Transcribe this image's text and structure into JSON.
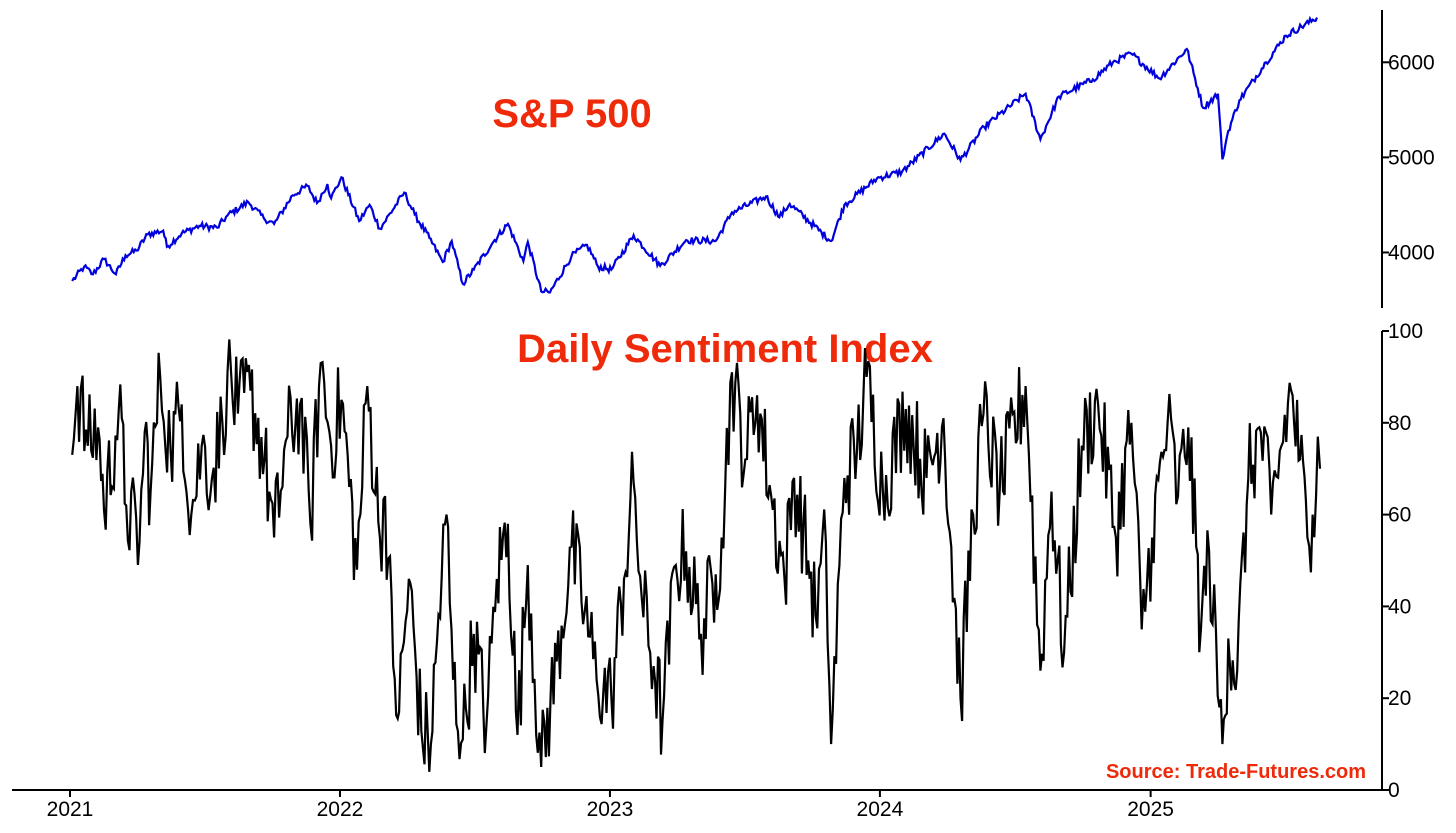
{
  "colors": {
    "title": "#ee2a0a",
    "source": "#ee2a0a",
    "sp500_line": "#0000dd",
    "dsi_line": "#000000",
    "axis": "#000000"
  },
  "chart_data": [
    {
      "type": "line",
      "title": "S&P 500",
      "x_axis": "shared dates with lower panel",
      "yaxis_side": "right",
      "ylim": [
        3500,
        6550
      ],
      "yticks": [
        4000,
        5000,
        6000
      ],
      "ytick_labels": [
        "4000",
        "5000",
        "6000"
      ],
      "grid": false,
      "series": [
        {
          "values": [
            [
              "2021-01-04",
              3700
            ],
            [
              "2021-01-20",
              3850
            ],
            [
              "2021-02-01",
              3770
            ],
            [
              "2021-02-16",
              3930
            ],
            [
              "2021-03-04",
              3770
            ],
            [
              "2021-03-17",
              3970
            ],
            [
              "2021-04-01",
              4020
            ],
            [
              "2021-04-16",
              4190
            ],
            [
              "2021-05-07",
              4230
            ],
            [
              "2021-05-12",
              4060
            ],
            [
              "2021-06-01",
              4200
            ],
            [
              "2021-06-25",
              4280
            ],
            [
              "2021-07-19",
              4260
            ],
            [
              "2021-08-02",
              4390
            ],
            [
              "2021-08-30",
              4530
            ],
            [
              "2021-09-20",
              4360
            ],
            [
              "2021-10-04",
              4300
            ],
            [
              "2021-10-29",
              4600
            ],
            [
              "2021-11-18",
              4700
            ],
            [
              "2021-12-01",
              4520
            ],
            [
              "2021-12-15",
              4720
            ],
            [
              "2021-12-20",
              4570
            ],
            [
              "2022-01-03",
              4790
            ],
            [
              "2022-01-27",
              4330
            ],
            [
              "2022-02-10",
              4500
            ],
            [
              "2022-02-24",
              4250
            ],
            [
              "2022-03-29",
              4630
            ],
            [
              "2022-04-12",
              4400
            ],
            [
              "2022-05-02",
              4150
            ],
            [
              "2022-05-20",
              3900
            ],
            [
              "2022-06-01",
              4120
            ],
            [
              "2022-06-16",
              3670
            ],
            [
              "2022-07-01",
              3820
            ],
            [
              "2022-07-29",
              4130
            ],
            [
              "2022-08-16",
              4300
            ],
            [
              "2022-09-06",
              3910
            ],
            [
              "2022-09-12",
              4110
            ],
            [
              "2022-09-30",
              3590
            ],
            [
              "2022-10-12",
              3580
            ],
            [
              "2022-11-10",
              3960
            ],
            [
              "2022-12-01",
              4080
            ],
            [
              "2022-12-16",
              3850
            ],
            [
              "2023-01-03",
              3820
            ],
            [
              "2023-02-02",
              4180
            ],
            [
              "2023-03-10",
              3860
            ],
            [
              "2023-04-14",
              4130
            ],
            [
              "2023-05-24",
              4120
            ],
            [
              "2023-06-15",
              4420
            ],
            [
              "2023-07-31",
              4590
            ],
            [
              "2023-08-18",
              4370
            ],
            [
              "2023-09-01",
              4510
            ],
            [
              "2023-10-27",
              4120
            ],
            [
              "2023-11-14",
              4500
            ],
            [
              "2023-12-28",
              4780
            ],
            [
              "2024-01-31",
              4850
            ],
            [
              "2024-03-28",
              5250
            ],
            [
              "2024-04-19",
              4970
            ],
            [
              "2024-05-21",
              5320
            ],
            [
              "2024-07-16",
              5670
            ],
            [
              "2024-08-05",
              5190
            ],
            [
              "2024-08-30",
              5640
            ],
            [
              "2024-10-15",
              5820
            ],
            [
              "2024-11-11",
              6000
            ],
            [
              "2024-12-06",
              6090
            ],
            [
              "2025-01-13",
              5830
            ],
            [
              "2025-02-19",
              6140
            ],
            [
              "2025-03-13",
              5520
            ],
            [
              "2025-04-02",
              5670
            ],
            [
              "2025-04-08",
              4980
            ],
            [
              "2025-04-16",
              5280
            ],
            [
              "2025-05-01",
              5600
            ],
            [
              "2025-06-06",
              6000
            ],
            [
              "2025-07-03",
              6280
            ],
            [
              "2025-08-14",
              6470
            ]
          ]
        }
      ]
    },
    {
      "type": "line",
      "title": "Daily Sentiment Index",
      "xlim": [
        "2021-01-01",
        "2025-09-01"
      ],
      "xticks": [
        "2021-01-01",
        "2022-01-01",
        "2023-01-01",
        "2024-01-01",
        "2025-01-01"
      ],
      "xtick_labels": [
        "2021",
        "2022",
        "2023",
        "2024",
        "2025"
      ],
      "yaxis_side": "right",
      "ylim": [
        0,
        100
      ],
      "yticks": [
        0,
        20,
        40,
        60,
        80,
        100
      ],
      "ytick_labels": [
        "0",
        "20",
        "40",
        "60",
        "80",
        "100"
      ],
      "grid": false,
      "source": "Source: Trade-Futures.com",
      "series": [
        {
          "values": [
            [
              "2021-01-04",
              73
            ],
            [
              "2021-01-11",
              88
            ],
            [
              "2021-01-25",
              75
            ],
            [
              "2021-02-08",
              79
            ],
            [
              "2021-02-16",
              61
            ],
            [
              "2021-03-08",
              83
            ],
            [
              "2021-03-18",
              62
            ],
            [
              "2021-04-05",
              54
            ],
            [
              "2021-04-12",
              78
            ],
            [
              "2021-04-20",
              65
            ],
            [
              "2021-05-03",
              90
            ],
            [
              "2021-05-17",
              74
            ],
            [
              "2021-06-01",
              84
            ],
            [
              "2021-06-14",
              60
            ],
            [
              "2021-06-28",
              75
            ],
            [
              "2021-07-12",
              68
            ],
            [
              "2021-07-26",
              80
            ],
            [
              "2021-08-02",
              91
            ],
            [
              "2021-08-16",
              82
            ],
            [
              "2021-09-02",
              87
            ],
            [
              "2021-09-21",
              72
            ],
            [
              "2021-10-04",
              55
            ],
            [
              "2021-10-22",
              77
            ],
            [
              "2021-11-08",
              84
            ],
            [
              "2021-11-22",
              58
            ],
            [
              "2021-12-06",
              93
            ],
            [
              "2021-12-20",
              75
            ],
            [
              "2022-01-03",
              85
            ],
            [
              "2022-01-24",
              48
            ],
            [
              "2022-02-07",
              88
            ],
            [
              "2022-02-24",
              55
            ],
            [
              "2022-03-03",
              64
            ],
            [
              "2022-03-14",
              27
            ],
            [
              "2022-03-22",
              17
            ],
            [
              "2022-04-04",
              46
            ],
            [
              "2022-04-21",
              13
            ],
            [
              "2022-05-04",
              10
            ],
            [
              "2022-05-12",
              32
            ],
            [
              "2022-05-25",
              60
            ],
            [
              "2022-06-03",
              24
            ],
            [
              "2022-06-16",
              11
            ],
            [
              "2022-07-01",
              34
            ],
            [
              "2022-07-18",
              14
            ],
            [
              "2022-08-01",
              46
            ],
            [
              "2022-08-16",
              58
            ],
            [
              "2022-08-29",
              12
            ],
            [
              "2022-09-12",
              49
            ],
            [
              "2022-09-30",
              5
            ],
            [
              "2022-10-21",
              28
            ],
            [
              "2022-11-10",
              53
            ],
            [
              "2022-11-28",
              39
            ],
            [
              "2022-12-14",
              24
            ],
            [
              "2023-01-03",
              20
            ],
            [
              "2023-01-20",
              46
            ],
            [
              "2023-02-02",
              67
            ],
            [
              "2023-02-13",
              42
            ],
            [
              "2023-03-01",
              27
            ],
            [
              "2023-03-13",
              15
            ],
            [
              "2023-03-31",
              49
            ],
            [
              "2023-04-14",
              52
            ],
            [
              "2023-05-04",
              34
            ],
            [
              "2023-05-24",
              47
            ],
            [
              "2023-06-01",
              55
            ],
            [
              "2023-06-15",
              91
            ],
            [
              "2023-07-03",
              72
            ],
            [
              "2023-07-19",
              86
            ],
            [
              "2023-08-07",
              64
            ],
            [
              "2023-08-25",
              46
            ],
            [
              "2023-09-07",
              68
            ],
            [
              "2023-09-26",
              50
            ],
            [
              "2023-10-06",
              38
            ],
            [
              "2023-10-20",
              54
            ],
            [
              "2023-10-27",
              10
            ],
            [
              "2023-11-14",
              68
            ],
            [
              "2023-12-01",
              74
            ],
            [
              "2023-12-14",
              90
            ],
            [
              "2024-01-05",
              65
            ],
            [
              "2024-02-05",
              83
            ],
            [
              "2024-03-04",
              68
            ],
            [
              "2024-03-27",
              81
            ],
            [
              "2024-04-19",
              20
            ],
            [
              "2024-05-06",
              60
            ],
            [
              "2024-05-20",
              82
            ],
            [
              "2024-06-11",
              65
            ],
            [
              "2024-07-16",
              88
            ],
            [
              "2024-08-05",
              26
            ],
            [
              "2024-08-20",
              65
            ],
            [
              "2024-09-06",
              30
            ],
            [
              "2024-09-30",
              75
            ],
            [
              "2024-10-22",
              84
            ],
            [
              "2024-11-15",
              55
            ],
            [
              "2024-12-06",
              80
            ],
            [
              "2024-12-20",
              35
            ],
            [
              "2025-01-03",
              55
            ],
            [
              "2025-01-24",
              80
            ],
            [
              "2025-02-07",
              64
            ],
            [
              "2025-02-21",
              79
            ],
            [
              "2025-03-10",
              35
            ],
            [
              "2025-03-21",
              52
            ],
            [
              "2025-04-04",
              18
            ],
            [
              "2025-04-08",
              10
            ],
            [
              "2025-04-16",
              33
            ],
            [
              "2025-04-28",
              26
            ],
            [
              "2025-05-13",
              68
            ],
            [
              "2025-05-30",
              78
            ],
            [
              "2025-06-13",
              60
            ],
            [
              "2025-06-27",
              75
            ],
            [
              "2025-07-10",
              87
            ],
            [
              "2025-07-22",
              72
            ],
            [
              "2025-08-01",
              55
            ],
            [
              "2025-08-08",
              60
            ],
            [
              "2025-08-15",
              77
            ],
            [
              "2025-08-18",
              70
            ]
          ]
        }
      ]
    }
  ]
}
